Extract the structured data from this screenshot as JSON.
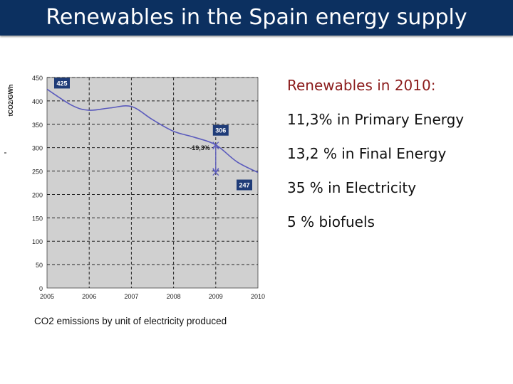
{
  "header": {
    "title": "Renewables in the Spain energy supply"
  },
  "info_panel": {
    "title": "Renewables in 2010:",
    "items": [
      "11,3% in Primary Energy",
      "13,2 % in Final Energy",
      "35 % in Electricity",
      "5 % biofuels"
    ]
  },
  "chart_caption": "CO2 emissions by unit of electricity produced",
  "chart_data": {
    "type": "line",
    "ylabel": "tCO2/GWh",
    "xlabel": "",
    "x": [
      2005,
      2005.6,
      2006,
      2006.5,
      2007,
      2007.5,
      2008,
      2008.5,
      2009,
      2009.5,
      2010
    ],
    "y": [
      425,
      390,
      380,
      385,
      388,
      360,
      335,
      322,
      306,
      270,
      247
    ],
    "x_ticks": [
      "2005",
      "2006",
      "2007",
      "2008",
      "2009",
      "2010"
    ],
    "y_ticks": [
      "0",
      "50",
      "100",
      "150",
      "200",
      "250",
      "300",
      "350",
      "400",
      "450"
    ],
    "xlim": [
      2005,
      2010
    ],
    "ylim": [
      0,
      450
    ],
    "grid": true,
    "labels": [
      {
        "text": "425",
        "x": 2005,
        "y": 425
      },
      {
        "text": "306",
        "x": 2009,
        "y": 306
      },
      {
        "text": "247",
        "x": 2010,
        "y": 247
      }
    ],
    "annotation": {
      "text": "-19,3%",
      "x": 2009,
      "y_from": 306,
      "y_to": 247
    },
    "colors": {
      "line": "#5b5bbd",
      "plot_bg": "#d0d0d0",
      "label_bg": "#1f3c78",
      "grid": "#222222"
    }
  }
}
